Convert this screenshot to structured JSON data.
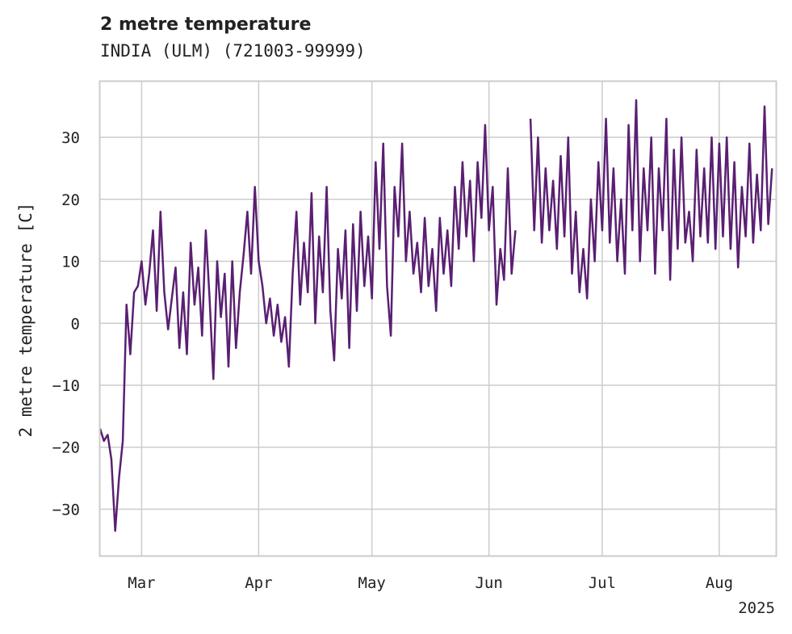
{
  "chart_data": {
    "type": "line",
    "title": "2 metre temperature",
    "subtitle": "INDIA (ULM) (721003-99999)",
    "ylabel": "2 metre temperature [C]",
    "xlabel": "",
    "x_range": [
      "2025-02-18",
      "2025-08-16"
    ],
    "ylim": [
      -37.5,
      39
    ],
    "yticks": [
      -30,
      -20,
      -10,
      0,
      10,
      20,
      30
    ],
    "xticks": [
      {
        "date": "2025-03-01",
        "label": "Mar"
      },
      {
        "date": "2025-04-01",
        "label": "Apr"
      },
      {
        "date": "2025-05-01",
        "label": "May"
      },
      {
        "date": "2025-06-01",
        "label": "Jun"
      },
      {
        "date": "2025-07-01",
        "label": "Jul"
      },
      {
        "date": "2025-08-01",
        "label": "Aug"
      }
    ],
    "year_label": "2025",
    "grid": true,
    "line_color": "#5a1f72",
    "series": [
      {
        "name": "",
        "points": [
          [
            "2025-02-18",
            -17.0
          ],
          [
            "2025-02-19",
            -19.0
          ],
          [
            "2025-02-20",
            -18.0
          ],
          [
            "2025-02-21",
            -22.0
          ],
          [
            "2025-02-22",
            -33.5
          ],
          [
            "2025-02-23",
            -25.0
          ],
          [
            "2025-02-24",
            -19.0
          ],
          [
            "2025-02-25",
            3.0
          ],
          [
            "2025-02-26",
            -5.0
          ],
          [
            "2025-02-27",
            5.0
          ],
          [
            "2025-02-28",
            6.0
          ],
          [
            "2025-03-01",
            10.0
          ],
          [
            "2025-03-02",
            3.0
          ],
          [
            "2025-03-03",
            8.0
          ],
          [
            "2025-03-04",
            15.0
          ],
          [
            "2025-03-05",
            2.0
          ],
          [
            "2025-03-06",
            18.0
          ],
          [
            "2025-03-07",
            5.0
          ],
          [
            "2025-03-08",
            -1.0
          ],
          [
            "2025-03-09",
            4.0
          ],
          [
            "2025-03-10",
            9.0
          ],
          [
            "2025-03-11",
            -4.0
          ],
          [
            "2025-03-12",
            5.0
          ],
          [
            "2025-03-13",
            -5.0
          ],
          [
            "2025-03-14",
            13.0
          ],
          [
            "2025-03-15",
            3.0
          ],
          [
            "2025-03-16",
            9.0
          ],
          [
            "2025-03-17",
            -2.0
          ],
          [
            "2025-03-18",
            15.0
          ],
          [
            "2025-03-19",
            4.0
          ],
          [
            "2025-03-20",
            -9.0
          ],
          [
            "2025-03-21",
            10.0
          ],
          [
            "2025-03-22",
            1.0
          ],
          [
            "2025-03-23",
            8.0
          ],
          [
            "2025-03-24",
            -7.0
          ],
          [
            "2025-03-25",
            10.0
          ],
          [
            "2025-03-26",
            -4.0
          ],
          [
            "2025-03-27",
            5.0
          ],
          [
            "2025-03-28",
            11.0
          ],
          [
            "2025-03-29",
            18.0
          ],
          [
            "2025-03-30",
            8.0
          ],
          [
            "2025-03-31",
            22.0
          ],
          [
            "2025-04-01",
            10.0
          ],
          [
            "2025-04-02",
            6.0
          ],
          [
            "2025-04-03",
            0.0
          ],
          [
            "2025-04-04",
            4.0
          ],
          [
            "2025-04-05",
            -2.0
          ],
          [
            "2025-04-06",
            3.0
          ],
          [
            "2025-04-07",
            -3.0
          ],
          [
            "2025-04-08",
            1.0
          ],
          [
            "2025-04-09",
            -7.0
          ],
          [
            "2025-04-10",
            8.0
          ],
          [
            "2025-04-11",
            18.0
          ],
          [
            "2025-04-12",
            3.0
          ],
          [
            "2025-04-13",
            13.0
          ],
          [
            "2025-04-14",
            5.0
          ],
          [
            "2025-04-15",
            21.0
          ],
          [
            "2025-04-16",
            0.0
          ],
          [
            "2025-04-17",
            14.0
          ],
          [
            "2025-04-18",
            5.0
          ],
          [
            "2025-04-19",
            22.0
          ],
          [
            "2025-04-20",
            2.0
          ],
          [
            "2025-04-21",
            -6.0
          ],
          [
            "2025-04-22",
            12.0
          ],
          [
            "2025-04-23",
            4.0
          ],
          [
            "2025-04-24",
            15.0
          ],
          [
            "2025-04-25",
            -4.0
          ],
          [
            "2025-04-26",
            16.0
          ],
          [
            "2025-04-27",
            2.0
          ],
          [
            "2025-04-28",
            18.0
          ],
          [
            "2025-04-29",
            6.0
          ],
          [
            "2025-04-30",
            14.0
          ],
          [
            "2025-05-01",
            4.0
          ],
          [
            "2025-05-02",
            26.0
          ],
          [
            "2025-05-03",
            12.0
          ],
          [
            "2025-05-04",
            29.0
          ],
          [
            "2025-05-05",
            6.0
          ],
          [
            "2025-05-06",
            -2.0
          ],
          [
            "2025-05-07",
            22.0
          ],
          [
            "2025-05-08",
            14.0
          ],
          [
            "2025-05-09",
            29.0
          ],
          [
            "2025-05-10",
            10.0
          ],
          [
            "2025-05-11",
            18.0
          ],
          [
            "2025-05-12",
            8.0
          ],
          [
            "2025-05-13",
            13.0
          ],
          [
            "2025-05-14",
            5.0
          ],
          [
            "2025-05-15",
            17.0
          ],
          [
            "2025-05-16",
            6.0
          ],
          [
            "2025-05-17",
            12.0
          ],
          [
            "2025-05-18",
            2.0
          ],
          [
            "2025-05-19",
            17.0
          ],
          [
            "2025-05-20",
            8.0
          ],
          [
            "2025-05-21",
            15.0
          ],
          [
            "2025-05-22",
            6.0
          ],
          [
            "2025-05-23",
            22.0
          ],
          [
            "2025-05-24",
            12.0
          ],
          [
            "2025-05-25",
            26.0
          ],
          [
            "2025-05-26",
            14.0
          ],
          [
            "2025-05-27",
            23.0
          ],
          [
            "2025-05-28",
            10.0
          ],
          [
            "2025-05-29",
            26.0
          ],
          [
            "2025-05-30",
            17.0
          ],
          [
            "2025-05-31",
            32.0
          ],
          [
            "2025-06-01",
            15.0
          ],
          [
            "2025-06-02",
            22.0
          ],
          [
            "2025-06-03",
            3.0
          ],
          [
            "2025-06-04",
            12.0
          ],
          [
            "2025-06-05",
            7.0
          ],
          [
            "2025-06-06",
            25.0
          ],
          [
            "2025-06-07",
            8.0
          ],
          [
            "2025-06-08",
            15.0
          ],
          [
            "2025-06-12",
            33.0
          ],
          [
            "2025-06-13",
            15.0
          ],
          [
            "2025-06-14",
            30.0
          ],
          [
            "2025-06-15",
            13.0
          ],
          [
            "2025-06-16",
            25.0
          ],
          [
            "2025-06-17",
            15.0
          ],
          [
            "2025-06-18",
            23.0
          ],
          [
            "2025-06-19",
            12.0
          ],
          [
            "2025-06-20",
            27.0
          ],
          [
            "2025-06-21",
            14.0
          ],
          [
            "2025-06-22",
            30.0
          ],
          [
            "2025-06-23",
            8.0
          ],
          [
            "2025-06-24",
            18.0
          ],
          [
            "2025-06-25",
            5.0
          ],
          [
            "2025-06-26",
            12.0
          ],
          [
            "2025-06-27",
            4.0
          ],
          [
            "2025-06-28",
            20.0
          ],
          [
            "2025-06-29",
            10.0
          ],
          [
            "2025-06-30",
            26.0
          ],
          [
            "2025-07-01",
            15.0
          ],
          [
            "2025-07-02",
            33.0
          ],
          [
            "2025-07-03",
            13.0
          ],
          [
            "2025-07-04",
            25.0
          ],
          [
            "2025-07-05",
            10.0
          ],
          [
            "2025-07-06",
            20.0
          ],
          [
            "2025-07-07",
            8.0
          ],
          [
            "2025-07-08",
            32.0
          ],
          [
            "2025-07-09",
            15.0
          ],
          [
            "2025-07-10",
            36.0
          ],
          [
            "2025-07-11",
            10.0
          ],
          [
            "2025-07-12",
            25.0
          ],
          [
            "2025-07-13",
            15.0
          ],
          [
            "2025-07-14",
            30.0
          ],
          [
            "2025-07-15",
            8.0
          ],
          [
            "2025-07-16",
            25.0
          ],
          [
            "2025-07-17",
            15.0
          ],
          [
            "2025-07-18",
            33.0
          ],
          [
            "2025-07-19",
            7.0
          ],
          [
            "2025-07-20",
            28.0
          ],
          [
            "2025-07-21",
            12.0
          ],
          [
            "2025-07-22",
            30.0
          ],
          [
            "2025-07-23",
            13.0
          ],
          [
            "2025-07-24",
            18.0
          ],
          [
            "2025-07-25",
            10.0
          ],
          [
            "2025-07-26",
            28.0
          ],
          [
            "2025-07-27",
            14.0
          ],
          [
            "2025-07-28",
            25.0
          ],
          [
            "2025-07-29",
            13.0
          ],
          [
            "2025-07-30",
            30.0
          ],
          [
            "2025-07-31",
            12.0
          ],
          [
            "2025-08-01",
            29.0
          ],
          [
            "2025-08-02",
            14.0
          ],
          [
            "2025-08-03",
            30.0
          ],
          [
            "2025-08-04",
            12.0
          ],
          [
            "2025-08-05",
            26.0
          ],
          [
            "2025-08-06",
            9.0
          ],
          [
            "2025-08-07",
            22.0
          ],
          [
            "2025-08-08",
            14.0
          ],
          [
            "2025-08-09",
            29.0
          ],
          [
            "2025-08-10",
            13.0
          ],
          [
            "2025-08-11",
            24.0
          ],
          [
            "2025-08-12",
            15.0
          ],
          [
            "2025-08-13",
            35.0
          ],
          [
            "2025-08-14",
            16.0
          ],
          [
            "2025-08-15",
            25.0
          ]
        ]
      }
    ]
  }
}
